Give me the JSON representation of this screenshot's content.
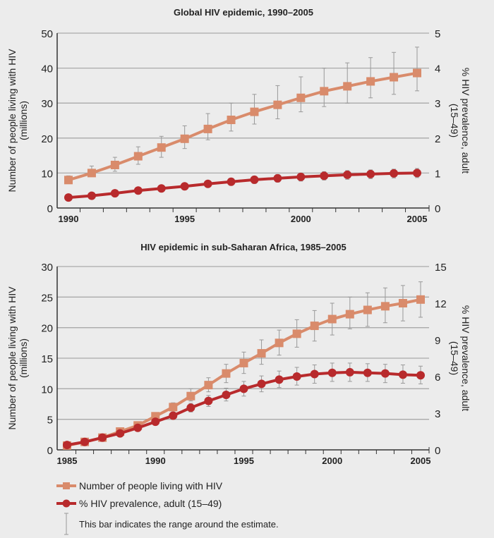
{
  "colors": {
    "number": "#d98b6b",
    "prevalence": "#b82a2c",
    "errorbar": "#999999",
    "grid": "#aaaaaa"
  },
  "legend": {
    "number_label": "Number of people living with HIV",
    "prevalence_label": "% HIV prevalence, adult (15–49)",
    "errorbar_label": "This bar indicates the range around the estimate."
  },
  "chart_data": [
    {
      "type": "line",
      "title": "Global HIV epidemic, 1990–2005",
      "ylabel": "Number of people living with HIV (millions)",
      "y2label": "% HIV prevalence, adult (15–49)",
      "xlim": [
        1990,
        2005
      ],
      "ylim": [
        0,
        50
      ],
      "y2lim": [
        0,
        5
      ],
      "xticks": [
        "1990",
        "1995",
        "2000",
        "2005"
      ],
      "yticks": [
        "0",
        "10",
        "20",
        "30",
        "40",
        "50"
      ],
      "y2ticks": [
        "0",
        "1",
        "2",
        "3",
        "4",
        "5"
      ],
      "grid": true,
      "x": [
        1990,
        1991,
        1992,
        1993,
        1994,
        1995,
        1996,
        1997,
        1998,
        1999,
        2000,
        2001,
        2002,
        2003,
        2004,
        2005
      ],
      "series": [
        {
          "name": "Number of people living with HIV",
          "axis": "left",
          "marker": "square",
          "values": [
            8,
            10,
            12.3,
            14.8,
            17.3,
            19.8,
            22.6,
            25.2,
            27.5,
            29.5,
            31.5,
            33.4,
            34.8,
            36.2,
            37.4,
            38.6
          ],
          "low": [
            7.5,
            9,
            10.5,
            12.5,
            14.5,
            17,
            19.5,
            22,
            24,
            25.5,
            27.5,
            29,
            30,
            31.5,
            32.5,
            33.5
          ],
          "high": [
            9.2,
            12,
            14.5,
            17.5,
            20.5,
            23.5,
            27,
            30,
            32.5,
            35,
            37.5,
            40,
            41.5,
            43,
            44.5,
            46
          ]
        },
        {
          "name": "% HIV prevalence, adult (15–49)",
          "axis": "right",
          "marker": "circle",
          "values": [
            0.3,
            0.35,
            0.42,
            0.5,
            0.56,
            0.62,
            0.69,
            0.75,
            0.81,
            0.85,
            0.89,
            0.92,
            0.95,
            0.97,
            0.99,
            1.0
          ],
          "low": [
            0.27,
            0.31,
            0.37,
            0.44,
            0.49,
            0.54,
            0.6,
            0.65,
            0.7,
            0.74,
            0.77,
            0.8,
            0.82,
            0.84,
            0.86,
            0.87
          ],
          "high": [
            0.33,
            0.39,
            0.47,
            0.56,
            0.63,
            0.7,
            0.78,
            0.85,
            0.91,
            0.96,
            1.0,
            1.04,
            1.07,
            1.09,
            1.11,
            1.13
          ]
        }
      ]
    },
    {
      "type": "line",
      "title": "HIV epidemic in sub-Saharan Africa, 1985–2005",
      "ylabel": "Number of people living with HIV (millions)",
      "y2label": "% HIV prevalence, adult (15–49)",
      "xlim": [
        1985,
        2005
      ],
      "ylim": [
        0,
        30
      ],
      "y2lim": [
        0,
        15
      ],
      "xticks": [
        "1985",
        "1990",
        "1995",
        "2000",
        "2005"
      ],
      "yticks": [
        "0",
        "5",
        "10",
        "15",
        "20",
        "25",
        "30"
      ],
      "y2ticks": [
        "0",
        "3",
        "6",
        "9",
        "12",
        "15"
      ],
      "grid": true,
      "x": [
        1985,
        1986,
        1987,
        1988,
        1989,
        1990,
        1991,
        1992,
        1993,
        1994,
        1995,
        1996,
        1997,
        1998,
        1999,
        2000,
        2001,
        2002,
        2003,
        2004,
        2005
      ],
      "series": [
        {
          "name": "Number of people living with HIV",
          "axis": "left",
          "marker": "square",
          "values": [
            0.7,
            1.3,
            2.0,
            3.0,
            4.0,
            5.5,
            7.0,
            8.8,
            10.6,
            12.5,
            14.2,
            15.8,
            17.5,
            19.0,
            20.3,
            21.4,
            22.2,
            22.9,
            23.5,
            24.0,
            24.6
          ],
          "low": [
            0.6,
            1.1,
            1.8,
            2.7,
            3.6,
            5.0,
            6.4,
            8.0,
            9.5,
            11.0,
            12.5,
            14.0,
            15.5,
            16.8,
            17.8,
            18.8,
            19.8,
            20.2,
            20.8,
            21.1,
            21.7
          ],
          "high": [
            0.8,
            1.5,
            2.2,
            3.3,
            4.4,
            6.0,
            7.7,
            10.0,
            11.8,
            14.0,
            16.0,
            18.0,
            19.6,
            21.3,
            22.8,
            24.0,
            25.0,
            25.7,
            26.5,
            26.9,
            27.5
          ]
        },
        {
          "name": "% HIV prevalence, adult (15–49)",
          "axis": "right",
          "marker": "circle",
          "values": [
            0.4,
            0.65,
            1.0,
            1.35,
            1.8,
            2.3,
            2.8,
            3.45,
            4.0,
            4.5,
            5.0,
            5.4,
            5.75,
            6.0,
            6.2,
            6.3,
            6.35,
            6.3,
            6.25,
            6.15,
            6.1
          ],
          "low": [
            0.35,
            0.57,
            0.88,
            1.2,
            1.6,
            2.05,
            2.5,
            3.1,
            3.55,
            4.0,
            4.4,
            4.75,
            5.1,
            5.3,
            5.45,
            5.6,
            5.6,
            5.6,
            5.5,
            5.45,
            5.4
          ],
          "high": [
            0.45,
            0.73,
            1.12,
            1.5,
            2.0,
            2.55,
            3.1,
            3.8,
            4.45,
            5.05,
            5.6,
            6.05,
            6.45,
            6.75,
            6.95,
            7.1,
            7.1,
            7.05,
            7.0,
            6.95,
            6.85
          ]
        }
      ]
    }
  ]
}
